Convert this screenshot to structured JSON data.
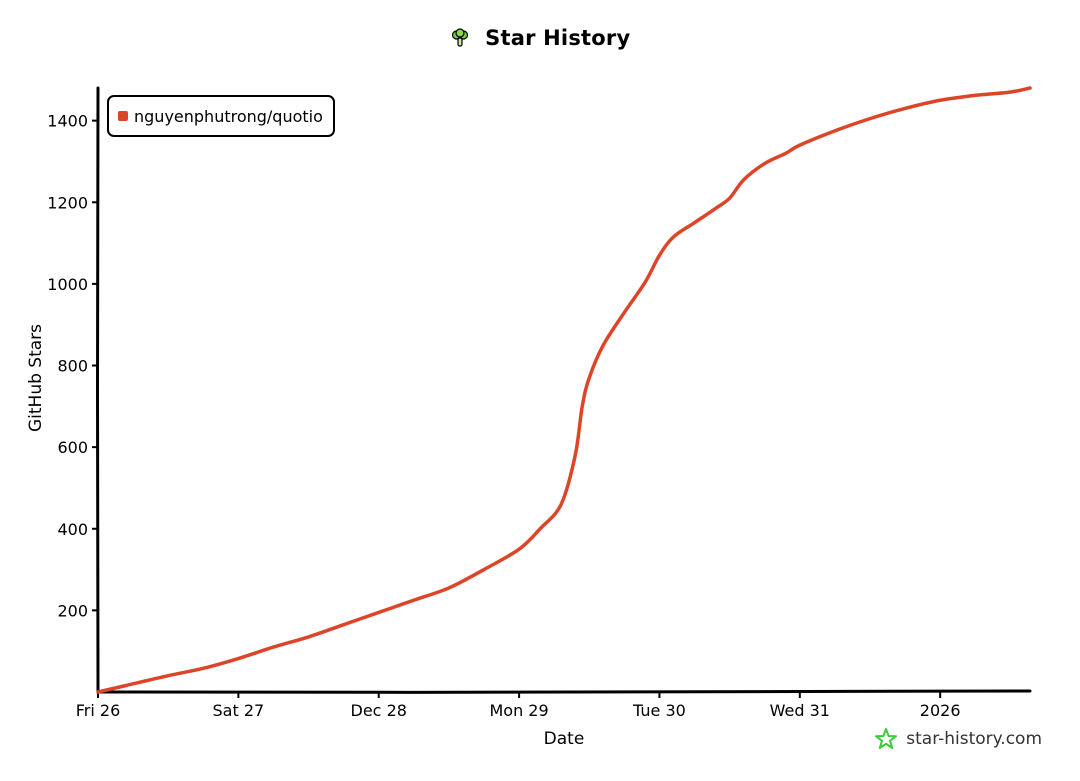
{
  "title": "Star History",
  "watermark": "star-history.com",
  "colors": {
    "series": "#dd4528",
    "axis": "#000000",
    "logo_green": "#3acc3a"
  },
  "icons": {
    "title": "broccoli-icon",
    "watermark": "star-icon"
  },
  "chart_data": {
    "type": "line",
    "title": "Star History",
    "xlabel": "Date",
    "ylabel": "GitHub Stars",
    "x_tick_labels": [
      "Fri 26",
      "Sat 27",
      "Dec 28",
      "Mon 29",
      "Tue 30",
      "Wed 31",
      "2026"
    ],
    "y_ticks": [
      200,
      400,
      600,
      800,
      1000,
      1200,
      1400
    ],
    "ylim": [
      0,
      1480
    ],
    "xlim": [
      0,
      6.64
    ],
    "grid": false,
    "legend_position": "top-left",
    "series": [
      {
        "name": "nguyenphutrong/quotio",
        "x": [
          0,
          0.25,
          0.5,
          0.75,
          1.0,
          1.25,
          1.5,
          1.75,
          2.0,
          2.25,
          2.5,
          2.75,
          3.0,
          3.15,
          3.3,
          3.4,
          3.45,
          3.5,
          3.6,
          3.75,
          3.9,
          4.0,
          4.1,
          4.25,
          4.4,
          4.5,
          4.6,
          4.75,
          4.9,
          5.0,
          5.25,
          5.5,
          5.75,
          6.0,
          6.25,
          6.5,
          6.64
        ],
        "values": [
          0,
          20,
          40,
          58,
          82,
          110,
          135,
          165,
          195,
          225,
          255,
          300,
          350,
          400,
          460,
          580,
          700,
          770,
          850,
          930,
          1005,
          1070,
          1115,
          1150,
          1185,
          1210,
          1255,
          1295,
          1320,
          1340,
          1375,
          1405,
          1430,
          1450,
          1462,
          1470,
          1480
        ]
      }
    ]
  }
}
